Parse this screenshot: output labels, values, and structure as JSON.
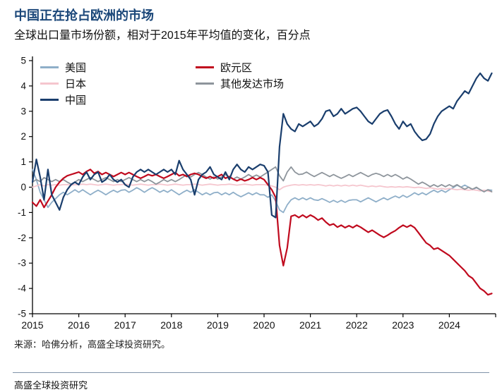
{
  "header": {
    "title": "中国正在抢占欧洲的市场",
    "subtitle": "全球出口量市场份额，相对于2015年平均值的变化，百分点"
  },
  "source": "来源：哈佛分析，高盛全球投资研究。",
  "footer": {
    "brand": "高盛全球投资研究"
  },
  "chart_data": {
    "type": "line",
    "title": "中国正在抢占欧洲的市场",
    "subtitle": "全球出口量市场份额，相对于2015年平均值的变化，百分点",
    "xlabel": "",
    "ylabel": "百分点",
    "xlim": [
      2015,
      2025
    ],
    "ylim": [
      -5,
      5
    ],
    "xticks": [
      2015,
      2016,
      2017,
      2018,
      2019,
      2020,
      2021,
      2022,
      2023,
      2024
    ],
    "yticks": [
      -5,
      -4,
      -3,
      -2,
      -1,
      0,
      1,
      2,
      3,
      4,
      5
    ],
    "grid": false,
    "legend_position": "top-left-inside",
    "x_start": 2015,
    "x_step_years": 0.08333,
    "legend": [
      {
        "label": "美国",
        "color": "#8fafc9"
      },
      {
        "label": "日本",
        "color": "#f5c6ce"
      },
      {
        "label": "中国",
        "color": "#1a3e6d"
      },
      {
        "label": "欧元区",
        "color": "#c00a1e"
      },
      {
        "label": "其他发达市场",
        "color": "#8e959c"
      }
    ],
    "series": [
      {
        "name": "美国",
        "color": "#8fafc9",
        "width": 1.8,
        "values": [
          0.7,
          0.3,
          -0.2,
          -0.5,
          -0.8,
          -0.6,
          -0.45,
          -0.3,
          -0.2,
          -0.3,
          -0.2,
          -0.1,
          -0.2,
          -0.1,
          -0.2,
          -0.3,
          -0.2,
          -0.12,
          -0.2,
          -0.3,
          -0.2,
          -0.12,
          -0.2,
          -0.12,
          -0.1,
          -0.2,
          -0.12,
          -0.02,
          -0.1,
          -0.2,
          -0.1,
          -0.02,
          -0.1,
          -0.2,
          -0.12,
          -0.2,
          -0.1,
          -0.2,
          -0.3,
          -0.2,
          -0.12,
          -0.2,
          -0.1,
          -0.2,
          -0.3,
          -0.22,
          -0.3,
          -0.22,
          -0.2,
          -0.3,
          -0.22,
          -0.3,
          -0.2,
          -0.3,
          -0.38,
          -0.3,
          -0.22,
          -0.3,
          -0.22,
          -0.3,
          -0.3,
          -0.4,
          -0.3,
          -0.55,
          -0.9,
          -1.0,
          -0.7,
          -0.5,
          -0.42,
          -0.5,
          -0.42,
          -0.5,
          -0.42,
          -0.5,
          -0.52,
          -0.45,
          -0.52,
          -0.6,
          -0.52,
          -0.6,
          -0.52,
          -0.6,
          -0.52,
          -0.5,
          -0.5,
          -0.58,
          -0.5,
          -0.42,
          -0.5,
          -0.58,
          -0.5,
          -0.42,
          -0.5,
          -0.42,
          -0.35,
          -0.42,
          -0.32,
          -0.4,
          -0.32,
          -0.22,
          -0.3,
          -0.22,
          -0.3,
          -0.2,
          -0.12,
          -0.2,
          -0.12,
          -0.2,
          -0.1,
          -0.02,
          0.08,
          0.0,
          0.08,
          0.0,
          -0.1,
          -0.02,
          -0.1,
          -0.18,
          -0.1,
          -0.12
        ]
      },
      {
        "name": "日本",
        "color": "#f5c6ce",
        "width": 1.8,
        "values": [
          0.0,
          0.05,
          0.1,
          0.05,
          0.1,
          0.08,
          0.1,
          0.08,
          0.1,
          0.1,
          0.08,
          0.1,
          0.1,
          0.12,
          0.1,
          0.12,
          0.1,
          0.08,
          0.1,
          0.12,
          0.1,
          0.08,
          0.1,
          0.1,
          0.12,
          0.1,
          0.08,
          0.1,
          0.12,
          0.1,
          0.08,
          0.1,
          0.1,
          0.12,
          0.1,
          0.08,
          0.1,
          0.12,
          0.1,
          0.08,
          0.1,
          0.1,
          0.12,
          0.1,
          0.08,
          0.1,
          0.12,
          0.1,
          0.08,
          0.1,
          0.1,
          0.12,
          0.1,
          0.08,
          0.1,
          0.12,
          0.1,
          0.08,
          0.1,
          0.1,
          0.1,
          0.08,
          0.05,
          0.0,
          -0.1,
          0.0,
          0.05,
          0.08,
          0.1,
          0.08,
          0.1,
          0.08,
          0.1,
          0.08,
          0.1,
          0.08,
          0.05,
          0.08,
          0.05,
          0.08,
          0.05,
          0.08,
          0.05,
          0.08,
          0.05,
          0.08,
          0.05,
          0.02,
          0.05,
          0.02,
          0.05,
          0.02,
          0.0,
          0.02,
          0.0,
          0.02,
          0.0,
          0.02,
          0.0,
          -0.02,
          0.0,
          -0.02,
          -0.05,
          -0.02,
          -0.05,
          -0.08,
          -0.05,
          -0.08,
          -0.05,
          -0.08,
          -0.1,
          -0.08,
          -0.1,
          -0.12,
          -0.1,
          -0.12,
          -0.15,
          -0.12,
          -0.15,
          -0.18
        ]
      },
      {
        "name": "其他发达市场",
        "color": "#8e959c",
        "width": 1.8,
        "values": [
          0.2,
          0.3,
          0.22,
          0.38,
          0.3,
          0.22,
          0.3,
          0.22,
          0.3,
          0.2,
          0.12,
          0.2,
          0.3,
          0.22,
          0.3,
          0.38,
          0.3,
          0.22,
          0.3,
          0.38,
          0.3,
          0.22,
          0.3,
          0.22,
          0.3,
          0.38,
          0.3,
          0.22,
          0.3,
          0.22,
          0.3,
          0.22,
          0.12,
          0.2,
          0.3,
          0.22,
          0.3,
          0.22,
          0.3,
          0.4,
          0.5,
          0.4,
          0.5,
          0.58,
          0.5,
          0.4,
          0.32,
          0.4,
          0.32,
          0.4,
          0.5,
          0.4,
          0.32,
          0.4,
          0.32,
          0.4,
          0.5,
          0.4,
          0.48,
          0.4,
          0.5,
          0.6,
          0.7,
          0.8,
          0.45,
          0.25,
          0.6,
          0.8,
          0.6,
          0.5,
          0.52,
          0.6,
          0.5,
          0.42,
          0.5,
          0.58,
          0.5,
          0.42,
          0.5,
          0.42,
          0.35,
          0.42,
          0.5,
          0.42,
          0.5,
          0.58,
          0.5,
          0.42,
          0.5,
          0.55,
          0.5,
          0.42,
          0.5,
          0.42,
          0.5,
          0.42,
          0.32,
          0.4,
          0.32,
          0.22,
          0.12,
          0.2,
          0.12,
          0.02,
          0.1,
          0.02,
          0.1,
          0.02,
          0.1,
          0.02,
          0.1,
          0.0,
          -0.08,
          0.0,
          -0.08,
          0.0,
          -0.1,
          -0.18,
          -0.1,
          -0.18
        ]
      },
      {
        "name": "欧元区",
        "color": "#c00a1e",
        "width": 2.2,
        "values": [
          -0.6,
          -0.75,
          -0.5,
          -0.8,
          -0.55,
          -0.3,
          0.0,
          0.2,
          0.35,
          0.45,
          0.5,
          0.55,
          0.6,
          0.5,
          0.62,
          0.7,
          0.55,
          0.62,
          0.5,
          0.58,
          0.5,
          0.42,
          0.5,
          0.58,
          0.5,
          0.58,
          0.5,
          0.42,
          0.35,
          0.42,
          0.5,
          0.45,
          0.5,
          0.42,
          0.35,
          0.42,
          0.5,
          0.58,
          0.45,
          0.5,
          0.42,
          0.5,
          0.55,
          0.5,
          0.42,
          0.35,
          0.42,
          0.35,
          0.42,
          0.5,
          0.35,
          0.42,
          0.32,
          0.25,
          0.32,
          0.25,
          0.3,
          0.38,
          0.3,
          0.38,
          0.3,
          0.1,
          -0.1,
          -0.4,
          -2.3,
          -3.1,
          -2.4,
          -1.15,
          -1.1,
          -1.2,
          -1.1,
          -1.2,
          -1.1,
          -1.18,
          -1.3,
          -1.22,
          -1.38,
          -1.5,
          -1.45,
          -1.58,
          -1.5,
          -1.6,
          -1.52,
          -1.6,
          -1.5,
          -1.58,
          -1.68,
          -1.78,
          -1.7,
          -1.8,
          -1.9,
          -1.98,
          -1.9,
          -1.8,
          -1.72,
          -1.6,
          -1.5,
          -1.58,
          -1.5,
          -1.6,
          -1.8,
          -2.0,
          -2.2,
          -2.3,
          -2.45,
          -2.4,
          -2.5,
          -2.6,
          -2.7,
          -2.85,
          -3.0,
          -3.15,
          -3.3,
          -3.5,
          -3.6,
          -3.8,
          -4.0,
          -4.1,
          -4.25,
          -4.2
        ]
      },
      {
        "name": "中国",
        "color": "#1a3e6d",
        "width": 2.2,
        "values": [
          0.2,
          1.1,
          0.4,
          -0.5,
          0.7,
          -0.3,
          -0.6,
          -0.9,
          -0.4,
          -0.1,
          0.1,
          0.2,
          0.1,
          0.4,
          0.6,
          0.3,
          0.5,
          0.6,
          0.2,
          0.3,
          0.5,
          0.3,
          0.2,
          0.3,
          0.1,
          0.0,
          0.4,
          0.6,
          0.7,
          0.6,
          0.7,
          0.6,
          0.5,
          0.6,
          0.7,
          0.6,
          0.7,
          0.5,
          1.05,
          0.7,
          0.5,
          0.3,
          -0.3,
          0.3,
          0.5,
          0.6,
          0.8,
          0.5,
          0.4,
          0.3,
          0.6,
          0.3,
          0.7,
          0.9,
          0.7,
          0.6,
          0.8,
          0.7,
          0.8,
          0.9,
          0.85,
          0.6,
          -1.1,
          -1.2,
          1.6,
          2.9,
          2.5,
          2.3,
          2.2,
          2.5,
          2.4,
          2.5,
          2.6,
          2.4,
          2.5,
          2.7,
          3.0,
          3.05,
          2.8,
          2.9,
          3.1,
          2.9,
          3.0,
          3.1,
          3.15,
          3.0,
          2.8,
          2.6,
          2.5,
          2.7,
          2.9,
          3.0,
          3.05,
          2.8,
          2.5,
          2.3,
          2.6,
          2.4,
          2.5,
          2.2,
          2.0,
          1.85,
          1.9,
          2.1,
          2.5,
          2.8,
          3.0,
          3.1,
          3.2,
          3.1,
          3.4,
          3.6,
          3.8,
          3.7,
          4.0,
          4.3,
          4.5,
          4.3,
          4.2,
          4.5
        ]
      }
    ]
  }
}
